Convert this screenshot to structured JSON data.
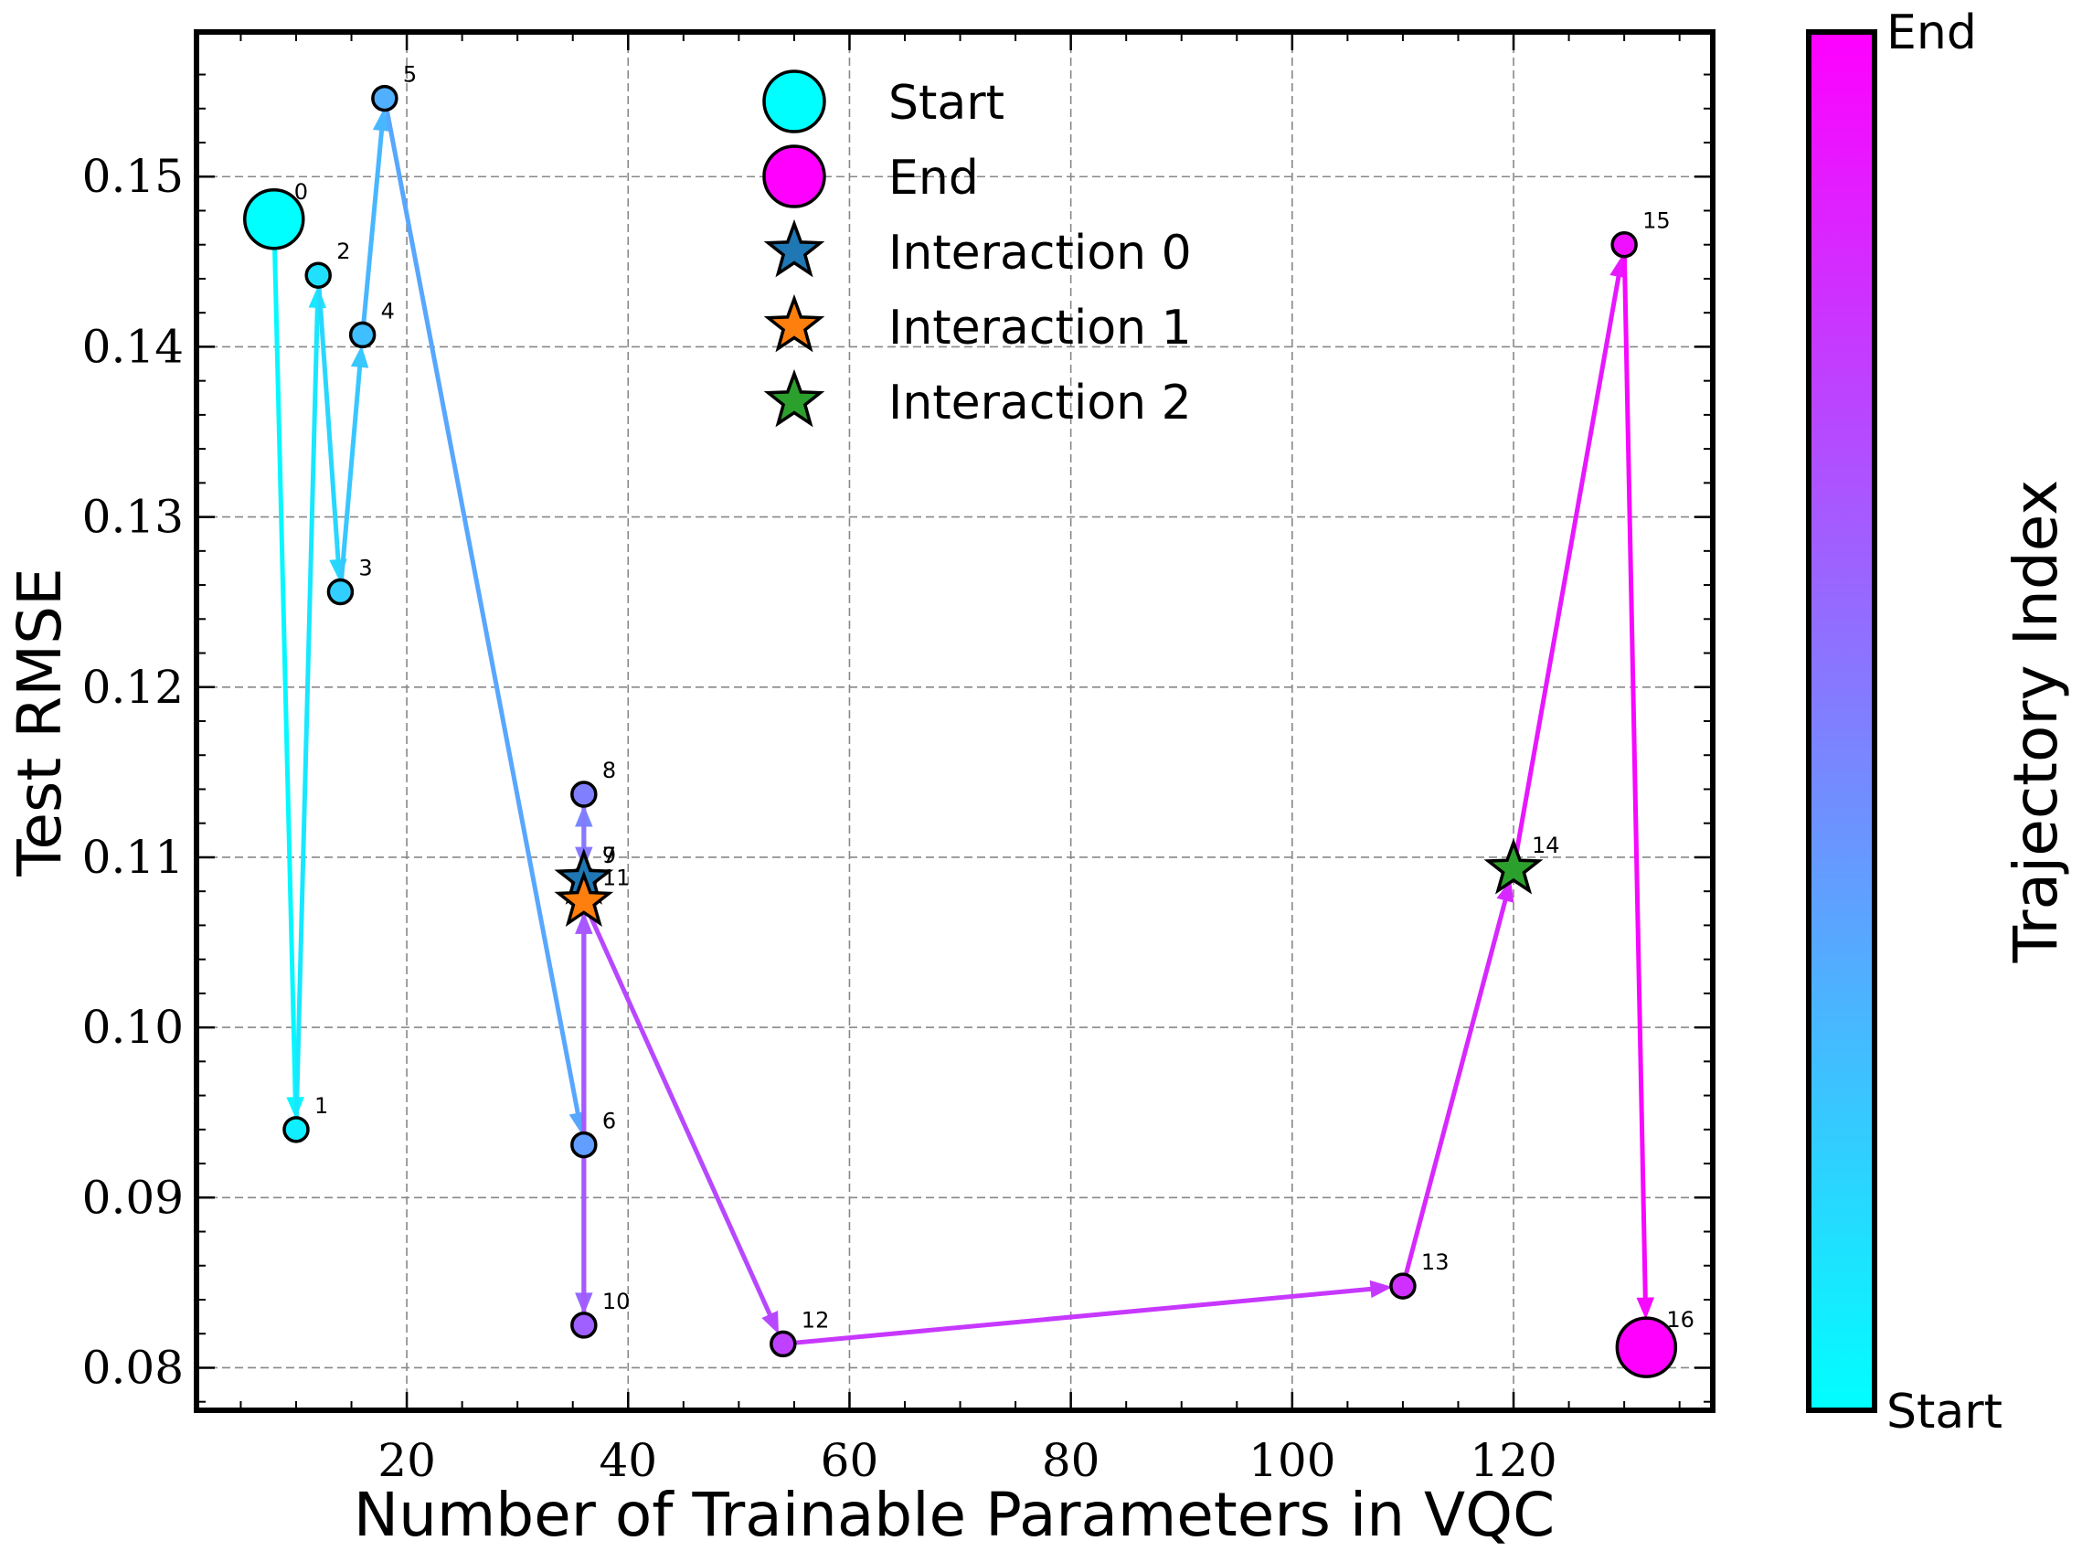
{
  "chart_data": {
    "type": "scatter",
    "xlabel": "Number of Trainable Parameters in VQC",
    "ylabel": "Test RMSE",
    "xlim": [
      1,
      138
    ],
    "ylim": [
      0.0775,
      0.1585
    ],
    "grid": true,
    "x_ticks": [
      20,
      40,
      60,
      80,
      100,
      120
    ],
    "y_ticks": [
      0.08,
      0.09,
      0.1,
      0.11,
      0.12,
      0.13,
      0.14,
      0.15
    ],
    "x_tick_labels": [
      "20",
      "40",
      "60",
      "80",
      "100",
      "120"
    ],
    "y_tick_labels": [
      "0.08",
      "0.09",
      "0.10",
      "0.11",
      "0.12",
      "0.13",
      "0.14",
      "0.15"
    ],
    "trajectory": {
      "name": "Trajectory",
      "points": [
        {
          "index": 0,
          "label": "0",
          "x": 8,
          "y": 0.1475
        },
        {
          "index": 1,
          "label": "1",
          "x": 10,
          "y": 0.094
        },
        {
          "index": 2,
          "label": "2",
          "x": 12,
          "y": 0.1442
        },
        {
          "index": 3,
          "label": "3",
          "x": 14,
          "y": 0.1256
        },
        {
          "index": 4,
          "label": "4",
          "x": 16,
          "y": 0.1407
        },
        {
          "index": 5,
          "label": "5",
          "x": 18,
          "y": 0.1546
        },
        {
          "index": 6,
          "label": "6",
          "x": 36,
          "y": 0.0931
        },
        {
          "index": 7,
          "label": "7",
          "x": 36,
          "y": 0.1087
        },
        {
          "index": 8,
          "label": "8",
          "x": 36,
          "y": 0.1137
        },
        {
          "index": 9,
          "label": "9",
          "x": 36,
          "y": 0.1087
        },
        {
          "index": 10,
          "label": "10",
          "x": 36,
          "y": 0.0825
        },
        {
          "index": 11,
          "label": "11",
          "x": 36,
          "y": 0.1074
        },
        {
          "index": 12,
          "label": "12",
          "x": 54,
          "y": 0.0814
        },
        {
          "index": 13,
          "label": "13",
          "x": 110,
          "y": 0.0848
        },
        {
          "index": 14,
          "label": "14",
          "x": 120,
          "y": 0.1093
        },
        {
          "index": 15,
          "label": "15",
          "x": 130,
          "y": 0.146
        },
        {
          "index": 16,
          "label": "16",
          "x": 132,
          "y": 0.0812
        }
      ]
    },
    "interactions": [
      {
        "name": "Interaction 0",
        "point_index": 9,
        "color": "#1f77b4"
      },
      {
        "name": "Interaction 1",
        "point_index": 11,
        "color": "#ff7f0e"
      },
      {
        "name": "Interaction 2",
        "point_index": 14,
        "color": "#2ca02c"
      }
    ],
    "legend": {
      "position": "top-center",
      "entries": [
        {
          "label": "Start",
          "marker": "circle",
          "color": "#00ffff"
        },
        {
          "label": "End",
          "marker": "circle",
          "color": "#ff00ff"
        },
        {
          "label": "Interaction 0",
          "marker": "star",
          "color": "#1f77b4"
        },
        {
          "label": "Interaction 1",
          "marker": "star",
          "color": "#ff7f0e"
        },
        {
          "label": "Interaction 2",
          "marker": "star",
          "color": "#2ca02c"
        }
      ]
    },
    "colorbar": {
      "label": "Trajectory Index",
      "colormap": "cool",
      "low_color": "#00ffff",
      "high_color": "#ff00ff",
      "top_label": "End",
      "bottom_label": "Start"
    }
  }
}
